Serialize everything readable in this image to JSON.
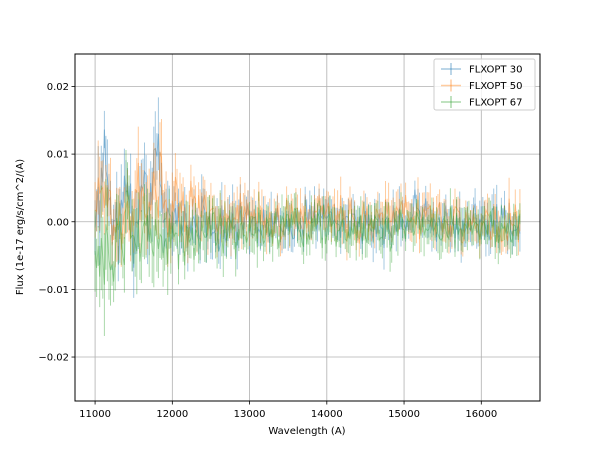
{
  "chart_data": {
    "type": "line",
    "title": "",
    "xlabel": "Wavelength (A)",
    "ylabel": "Flux (1e-17 erg/s/cm^2/(A)",
    "xlim": [
      10740,
      16760
    ],
    "ylim": [
      -0.0265,
      0.0248
    ],
    "x_ticks": [
      11000,
      12000,
      13000,
      14000,
      15000,
      16000
    ],
    "y_ticks": [
      -0.02,
      -0.01,
      0.0,
      0.01,
      0.02
    ],
    "x_tick_labels": [
      "11000",
      "12000",
      "13000",
      "14000",
      "15000",
      "16000"
    ],
    "y_tick_labels": [
      "−0.02",
      "−0.01",
      "0.00",
      "0.01",
      "0.02"
    ],
    "grid": true,
    "legend_position": "top-right",
    "x_step": 20,
    "series": [
      {
        "name": "FLXOPT 30",
        "color": "#1f77b4",
        "x": [
          11000,
          11100,
          11200,
          11300,
          11400,
          11500,
          11600,
          11700,
          11800,
          11850,
          11900,
          12000,
          12200,
          12400,
          12600,
          12800,
          13000,
          13300,
          13600,
          14000,
          14400,
          14800,
          15200,
          15600,
          16000,
          16500
        ],
        "y": [
          -0.002,
          0.01,
          0.005,
          -0.003,
          0.004,
          -0.002,
          0.006,
          0.002,
          0.012,
          0.008,
          -0.001,
          0.002,
          -0.001,
          0.001,
          -0.002,
          0.0,
          0.001,
          -0.001,
          0.0,
          0.001,
          -0.001,
          0.0,
          0.001,
          -0.001,
          0.0,
          0.0
        ],
        "err": [
          0.008,
          0.008,
          0.008,
          0.007,
          0.007,
          0.007,
          0.007,
          0.007,
          0.008,
          0.008,
          0.006,
          0.006,
          0.005,
          0.005,
          0.005,
          0.005,
          0.004,
          0.004,
          0.004,
          0.004,
          0.004,
          0.004,
          0.004,
          0.004,
          0.004,
          0.004
        ]
      },
      {
        "name": "FLXOPT 50",
        "color": "#ff7f0e",
        "x": [
          11000,
          11100,
          11200,
          11300,
          11400,
          11500,
          11600,
          11700,
          11800,
          11850,
          11900,
          12000,
          12200,
          12400,
          12600,
          12800,
          13000,
          13300,
          13600,
          14000,
          14400,
          14800,
          15200,
          15600,
          16000,
          16500
        ],
        "y": [
          0.001,
          0.004,
          0.003,
          0.0,
          0.004,
          0.001,
          0.005,
          0.002,
          0.007,
          0.005,
          0.0,
          0.002,
          0.001,
          0.002,
          0.0,
          0.001,
          0.001,
          0.0,
          0.001,
          0.001,
          0.0,
          0.001,
          0.001,
          0.0,
          0.0,
          0.0
        ],
        "err": [
          0.007,
          0.007,
          0.007,
          0.007,
          0.007,
          0.007,
          0.007,
          0.007,
          0.008,
          0.008,
          0.006,
          0.006,
          0.005,
          0.005,
          0.005,
          0.005,
          0.004,
          0.004,
          0.004,
          0.004,
          0.004,
          0.004,
          0.004,
          0.004,
          0.004,
          0.004
        ]
      },
      {
        "name": "FLXOPT 67",
        "color": "#2ca02c",
        "x": [
          11000,
          11100,
          11200,
          11300,
          11400,
          11500,
          11600,
          11700,
          11800,
          11850,
          11900,
          12000,
          12200,
          12400,
          12600,
          12800,
          13000,
          13300,
          13600,
          14000,
          14400,
          14800,
          15200,
          15600,
          16000,
          16500
        ],
        "y": [
          -0.005,
          -0.006,
          -0.006,
          -0.004,
          -0.003,
          -0.004,
          -0.003,
          -0.002,
          -0.002,
          -0.003,
          -0.003,
          -0.002,
          -0.002,
          -0.002,
          -0.002,
          -0.001,
          -0.001,
          -0.001,
          -0.001,
          -0.001,
          -0.001,
          -0.001,
          -0.001,
          -0.001,
          -0.001,
          -0.001
        ],
        "err": [
          0.009,
          0.01,
          0.009,
          0.008,
          0.008,
          0.008,
          0.008,
          0.007,
          0.007,
          0.007,
          0.006,
          0.006,
          0.005,
          0.005,
          0.005,
          0.005,
          0.004,
          0.004,
          0.004,
          0.004,
          0.004,
          0.004,
          0.004,
          0.004,
          0.004,
          0.004
        ]
      }
    ]
  }
}
